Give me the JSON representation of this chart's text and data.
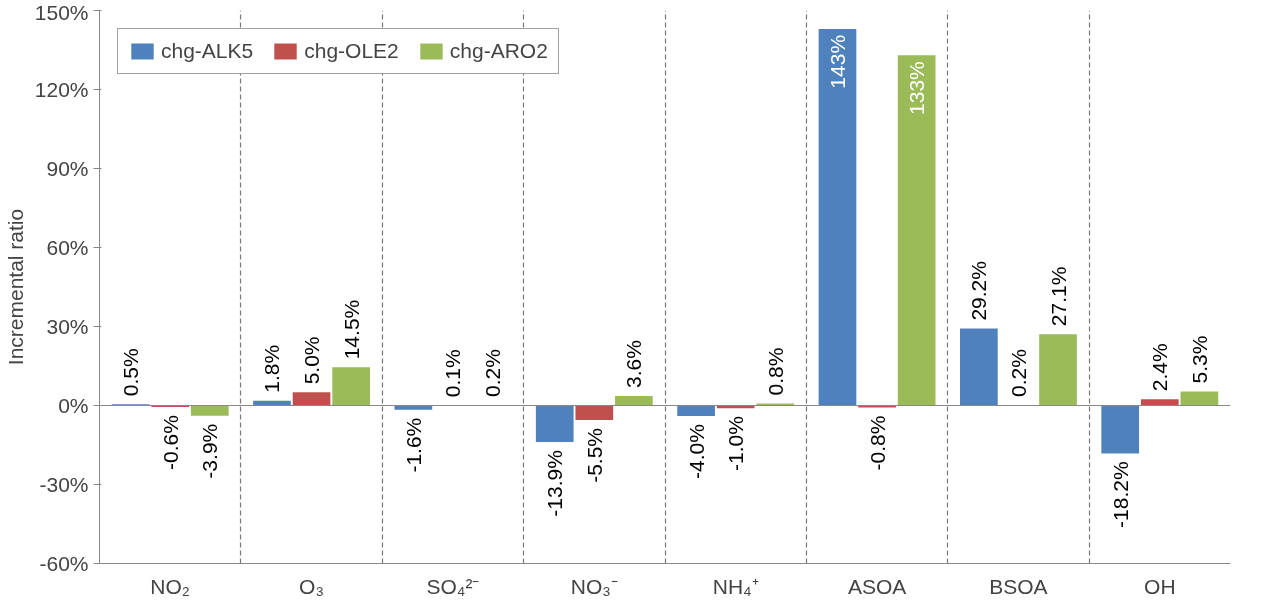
{
  "chart_data": {
    "type": "bar",
    "ylabel": "Incremental ratio",
    "categories": [
      "NO₂",
      "O₃",
      "SO₄²⁻",
      "NO₃⁻",
      "NH₄⁺",
      "ASOA",
      "BSOA",
      "OH"
    ],
    "series": [
      {
        "name": "chg-ALK5",
        "color": "#4f81bd",
        "values": [
          0.5,
          1.8,
          -1.6,
          -13.9,
          -4.0,
          143,
          29.2,
          -18.2
        ],
        "value_labels": [
          "0.5%",
          "1.8%",
          "-1.6%",
          "-13.9%",
          "-4.0%",
          "143%",
          "29.2%",
          "-18.2%"
        ]
      },
      {
        "name": "chg-OLE2",
        "color": "#c0504d",
        "values": [
          -0.6,
          5.0,
          0.1,
          -5.5,
          -1.0,
          -0.8,
          0.2,
          2.4
        ],
        "value_labels": [
          "-0.6%",
          "5.0%",
          "0.1%",
          "-5.5%",
          "-1.0%",
          "-0.8%",
          "0.2%",
          "2.4%"
        ]
      },
      {
        "name": "chg-ARO2",
        "color": "#9bbb59",
        "values": [
          -3.9,
          14.5,
          0.2,
          3.6,
          0.8,
          133,
          27.1,
          5.3
        ],
        "value_labels": [
          "-3.9%",
          "14.5%",
          "0.2%",
          "3.6%",
          "0.8%",
          "133%",
          "27.1%",
          "5.3%"
        ]
      }
    ],
    "ylim": [
      -60,
      150
    ],
    "yticks": [
      {
        "value": -60,
        "label": "-60%"
      },
      {
        "value": -30,
        "label": "-30%"
      },
      {
        "value": 0,
        "label": "0%"
      },
      {
        "value": 30,
        "label": "30%"
      },
      {
        "value": 60,
        "label": "60%"
      },
      {
        "value": 90,
        "label": "90%"
      },
      {
        "value": 120,
        "label": "120%"
      },
      {
        "value": 150,
        "label": "150%"
      }
    ],
    "grid": "x",
    "legend": "top left"
  }
}
